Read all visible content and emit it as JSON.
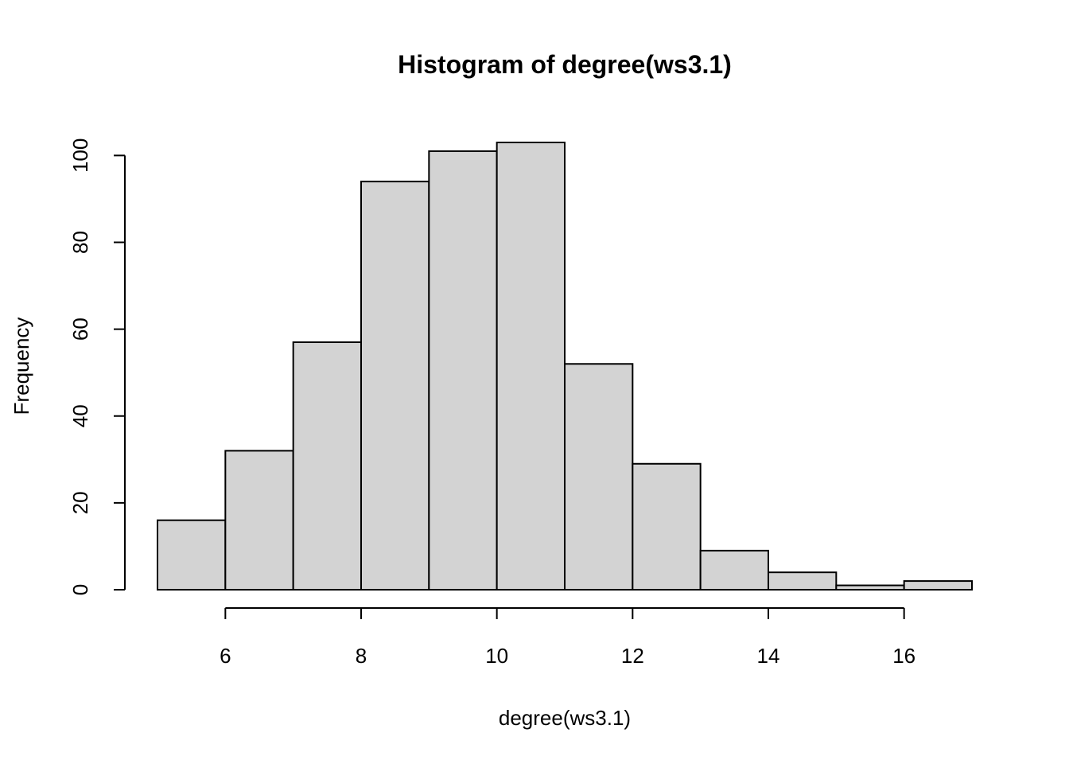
{
  "chart_data": {
    "type": "bar",
    "title": "Histogram of degree(ws3.1)",
    "xlabel": "degree(ws3.1)",
    "ylabel": "Frequency",
    "bins": [
      {
        "x0": 5,
        "x1": 6,
        "count": 16
      },
      {
        "x0": 6,
        "x1": 7,
        "count": 32
      },
      {
        "x0": 7,
        "x1": 8,
        "count": 57
      },
      {
        "x0": 8,
        "x1": 9,
        "count": 94
      },
      {
        "x0": 9,
        "x1": 10,
        "count": 101
      },
      {
        "x0": 10,
        "x1": 11,
        "count": 103
      },
      {
        "x0": 11,
        "x1": 12,
        "count": 52
      },
      {
        "x0": 12,
        "x1": 13,
        "count": 29
      },
      {
        "x0": 13,
        "x1": 14,
        "count": 9
      },
      {
        "x0": 14,
        "x1": 15,
        "count": 4
      },
      {
        "x0": 15,
        "x1": 16,
        "count": 1
      },
      {
        "x0": 16,
        "x1": 17,
        "count": 2
      }
    ],
    "xlim": [
      5,
      17
    ],
    "ylim": [
      0,
      103
    ],
    "x_ticks": [
      6,
      8,
      10,
      12,
      14,
      16
    ],
    "y_ticks": [
      0,
      20,
      40,
      60,
      80,
      100
    ],
    "bar_color": "#d3d3d3",
    "edge_color": "#000000",
    "grid": false,
    "legend": "none"
  }
}
